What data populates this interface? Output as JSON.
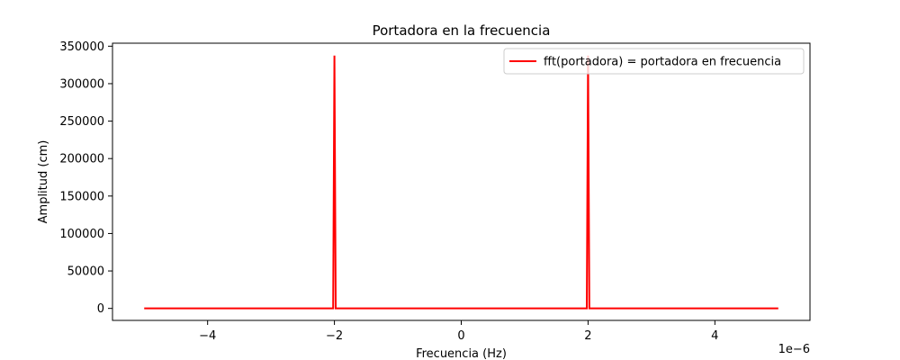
{
  "chart_data": {
    "type": "line",
    "title": "Portadora en la frecuencia",
    "xlabel": "Frecuencia (Hz)",
    "ylabel": "Amplitud (cm)",
    "x_scale_note": "1e−6",
    "xlim": [
      -5.5e-06,
      5.5e-06
    ],
    "ylim": [
      -16000,
      354000
    ],
    "x_ticks": [
      -4e-06,
      -2e-06,
      0,
      2e-06,
      4e-06
    ],
    "x_tick_labels": [
      "−4",
      "−2",
      "0",
      "2",
      "4"
    ],
    "y_ticks": [
      0,
      50000,
      100000,
      150000,
      200000,
      250000,
      300000,
      350000
    ],
    "y_tick_labels": [
      "0",
      "50000",
      "100000",
      "150000",
      "200000",
      "250000",
      "300000",
      "350000"
    ],
    "grid": false,
    "legend_position": "top-right",
    "series": [
      {
        "name": "fft(portadora) = portadora en frecuencia",
        "color": "#ff0000",
        "x": [
          -5e-06,
          -2.02e-06,
          -2e-06,
          -1.98e-06,
          1.98e-06,
          2e-06,
          2.02e-06,
          5e-06
        ],
        "y": [
          0,
          0,
          337500,
          0,
          0,
          337500,
          0,
          0
        ]
      }
    ]
  }
}
